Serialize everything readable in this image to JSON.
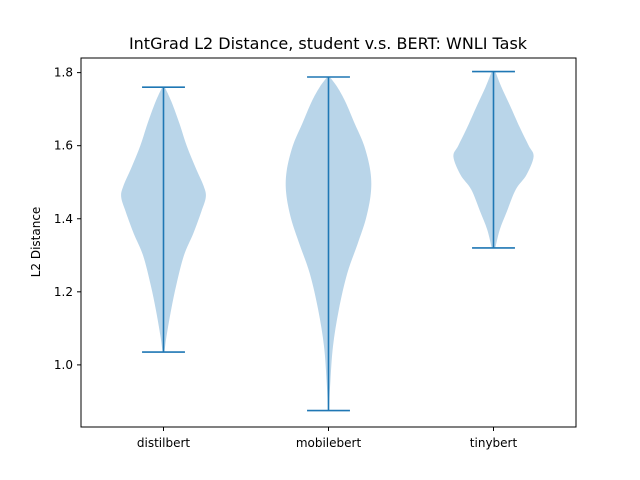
{
  "chart_data": {
    "type": "violin",
    "title": "IntGrad L2 Distance, student v.s. BERT: WNLI Task",
    "xlabel": "",
    "ylabel": "L2 Distance",
    "categories": [
      "distilbert",
      "mobilebert",
      "tinybert"
    ],
    "ylim": [
      0.83,
      1.84
    ],
    "yticks": [
      1.0,
      1.2,
      1.4,
      1.6,
      1.8
    ],
    "ytick_labels": [
      "1.0",
      "1.2",
      "1.4",
      "1.6",
      "1.8"
    ],
    "grid": false,
    "colors": {
      "body": "#b9d5e9",
      "line": "#1f77b4"
    },
    "series": [
      {
        "min": 1.035,
        "max": 1.76,
        "density": [
          [
            1.035,
            0.02
          ],
          [
            1.08,
            0.07
          ],
          [
            1.15,
            0.17
          ],
          [
            1.22,
            0.29
          ],
          [
            1.3,
            0.46
          ],
          [
            1.36,
            0.67
          ],
          [
            1.42,
            0.85
          ],
          [
            1.46,
            0.95
          ],
          [
            1.49,
            0.9
          ],
          [
            1.54,
            0.72
          ],
          [
            1.6,
            0.52
          ],
          [
            1.66,
            0.36
          ],
          [
            1.72,
            0.18
          ],
          [
            1.76,
            0.03
          ]
        ]
      },
      {
        "min": 0.875,
        "max": 1.788,
        "density": [
          [
            0.875,
            0.01
          ],
          [
            0.95,
            0.04
          ],
          [
            1.05,
            0.1
          ],
          [
            1.15,
            0.23
          ],
          [
            1.25,
            0.42
          ],
          [
            1.33,
            0.65
          ],
          [
            1.4,
            0.84
          ],
          [
            1.47,
            0.95
          ],
          [
            1.53,
            0.94
          ],
          [
            1.6,
            0.8
          ],
          [
            1.66,
            0.59
          ],
          [
            1.72,
            0.38
          ],
          [
            1.76,
            0.2
          ],
          [
            1.788,
            0.03
          ]
        ]
      },
      {
        "min": 1.32,
        "max": 1.803,
        "density": [
          [
            1.32,
            0.04
          ],
          [
            1.37,
            0.14
          ],
          [
            1.42,
            0.3
          ],
          [
            1.48,
            0.5
          ],
          [
            1.52,
            0.74
          ],
          [
            1.57,
            0.9
          ],
          [
            1.6,
            0.79
          ],
          [
            1.65,
            0.59
          ],
          [
            1.71,
            0.37
          ],
          [
            1.76,
            0.18
          ],
          [
            1.803,
            0.04
          ]
        ]
      }
    ]
  }
}
